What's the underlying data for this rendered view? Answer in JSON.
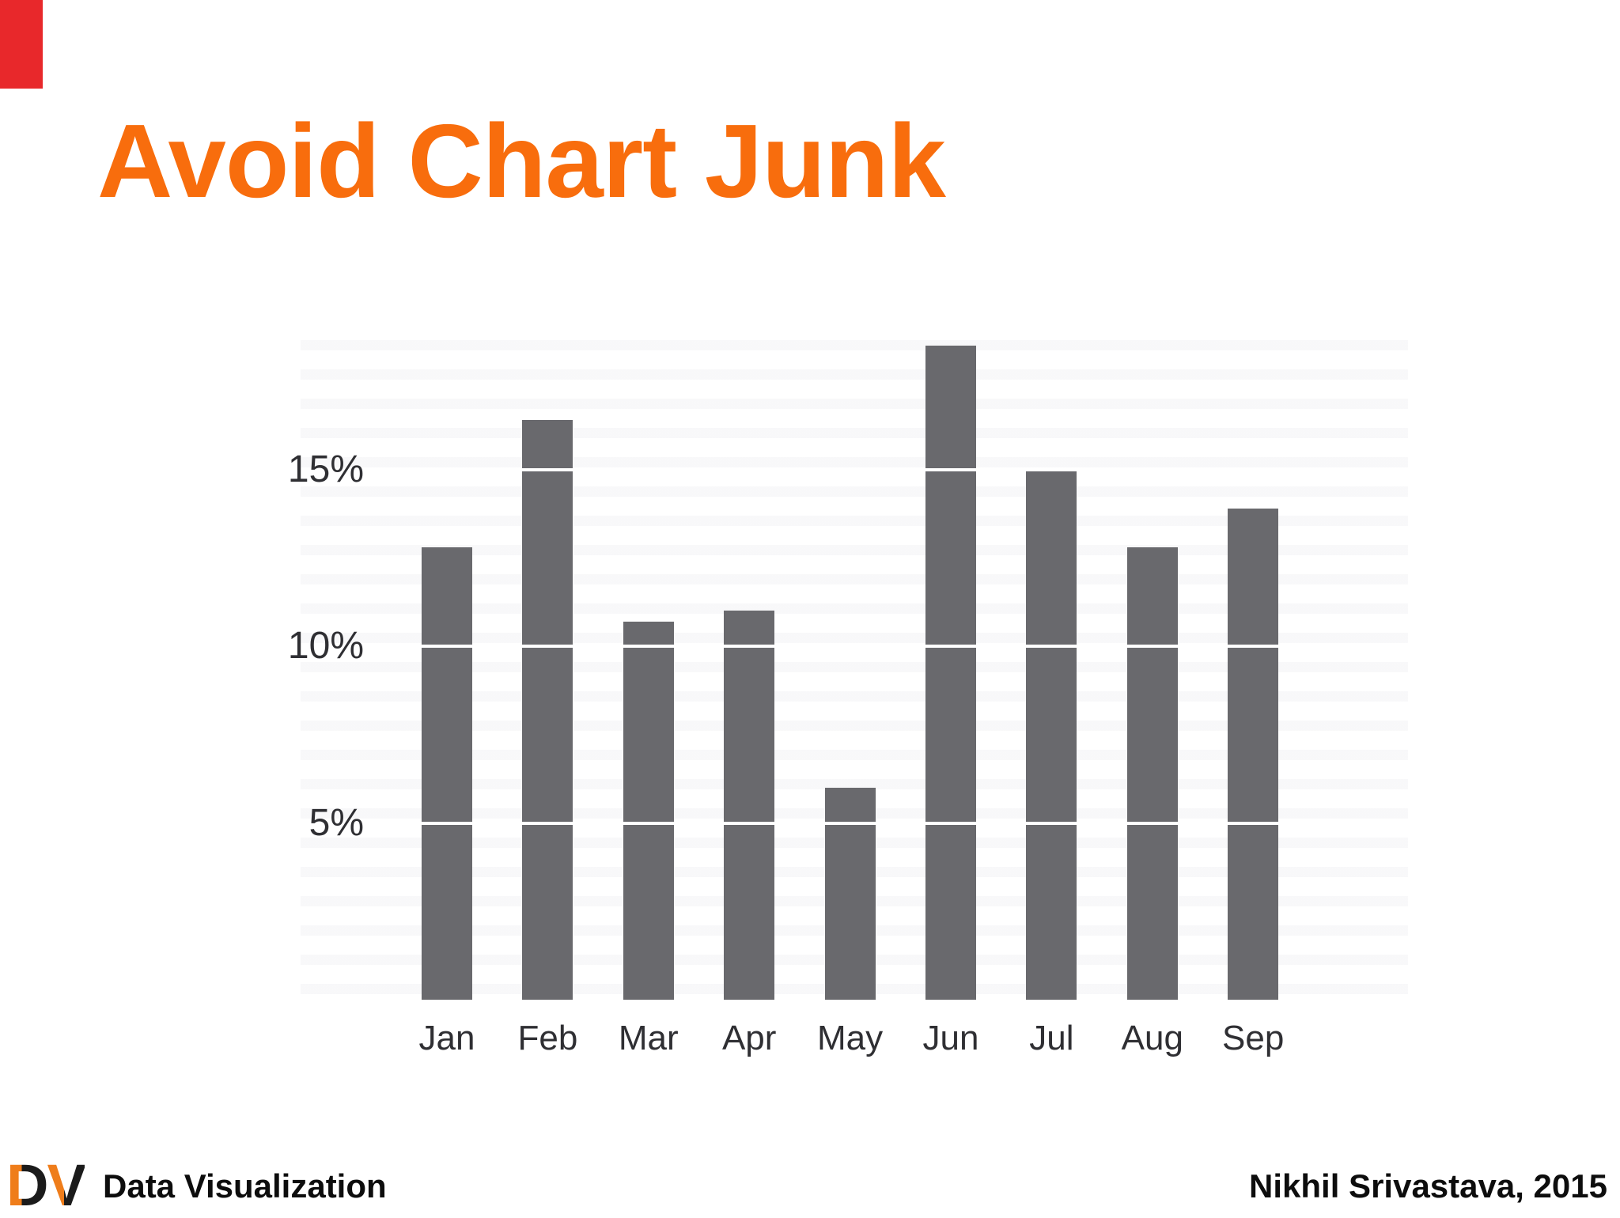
{
  "title": {
    "text": "Avoid Chart Junk",
    "color": "#f86d0d"
  },
  "chart_data": {
    "type": "bar",
    "categories": [
      "Jan",
      "Feb",
      "Mar",
      "Apr",
      "May",
      "Jun",
      "Jul",
      "Aug",
      "Sep"
    ],
    "values": [
      12.8,
      16.4,
      10.7,
      11.0,
      6.0,
      18.5,
      15.0,
      12.8,
      13.9
    ],
    "unit": "%",
    "y_ticks": [
      5,
      10,
      15
    ],
    "y_tick_labels": [
      "5%",
      "10%",
      "15%"
    ],
    "ylim": [
      0,
      19
    ],
    "xlabel": "",
    "ylabel": "",
    "chart_title": "",
    "legend": "none",
    "grid": "white gap lines across bars at each y tick",
    "bar_color": "#69696d",
    "gridline_color": "#ffffff",
    "axis_label_color": "#2f2f33"
  },
  "footer": {
    "logo_d": "D",
    "logo_v": "V",
    "logo_orange": "#ef7d1a",
    "logo_black": "#1b1b1b",
    "course": "Data Visualization",
    "credit": "Nikhil Srivastava, 2015",
    "text_color": "#0d0d0d"
  },
  "decor": {
    "corner_color": "#e8282b"
  }
}
